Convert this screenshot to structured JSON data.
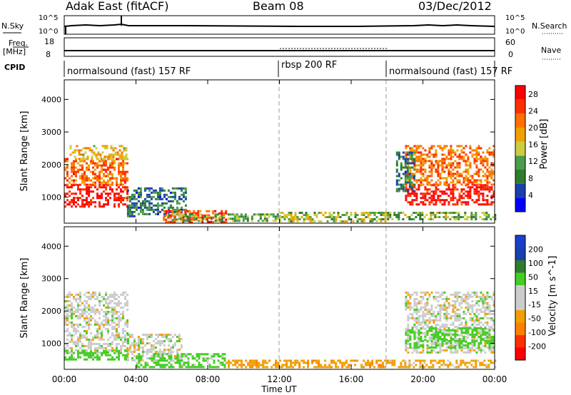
{
  "header": {
    "station": "Adak East (fitACF)",
    "beam": "Beam 08",
    "date": "03/Dec/2012"
  },
  "strips": {
    "nsky_label": "N.Sky",
    "nsky_ticks": [
      "10^5",
      "10^0"
    ],
    "nsearch_label": "N.Search",
    "freq_label_top": "Freq.",
    "freq_label_unit": "[MHz]",
    "freq_ticks": [
      "18",
      "8"
    ],
    "nave_label": "Nave",
    "nave_ticks": [
      "60",
      "0"
    ],
    "cpid_label": "CPID",
    "cpid_segments": [
      {
        "label": "normalsound (fast) 157 RF",
        "start_hour": 0,
        "end_hour": 12
      },
      {
        "label": "rbsp 200 RF",
        "start_hour": 12,
        "end_hour": 18
      },
      {
        "label": "normalsound (fast) 157 RF",
        "start_hour": 18,
        "end_hour": 24
      }
    ]
  },
  "colors": {
    "power": [
      "#0000ff",
      "#1a3fae",
      "#2e7c2e",
      "#4a9e4a",
      "#cccc44",
      "#f0a000",
      "#ff7000",
      "#ff3000",
      "#ff0000"
    ],
    "velocity": [
      "#ff0000",
      "#ff3000",
      "#ff8000",
      "#f0a000",
      "#cccccc",
      "#cccccc",
      "#44cc22",
      "#2e7c2e",
      "#1a3fae",
      "#1a3fcc"
    ]
  },
  "chart_data": [
    {
      "type": "heatmap",
      "title": "",
      "xlabel": "Time UT",
      "ylabel": "Slant Range [km]",
      "x_ticks": [
        "00:00",
        "04:00",
        "08:00",
        "12:00",
        "16:00",
        "20:00",
        "00:00"
      ],
      "xlim_hours": [
        0,
        24
      ],
      "y_ticks": [
        1000,
        2000,
        3000,
        4000
      ],
      "ylim": [
        200,
        4600
      ],
      "colorbar_label": "Power [dB]",
      "colorbar_ticks": [
        4,
        8,
        12,
        16,
        20,
        24,
        28
      ],
      "colorbar_range": [
        0,
        30
      ],
      "regions": [
        {
          "t0": 0.0,
          "t1": 3.5,
          "r0": 700,
          "r1": 1400,
          "value": 28
        },
        {
          "t0": 0.0,
          "t1": 3.5,
          "r0": 1400,
          "r1": 2200,
          "value": 22
        },
        {
          "t0": 0.3,
          "t1": 3.5,
          "r0": 2200,
          "r1": 2600,
          "value": 18
        },
        {
          "t0": 3.5,
          "t1": 6.8,
          "r0": 400,
          "r1": 1300,
          "value": 8
        },
        {
          "t0": 5.5,
          "t1": 9.0,
          "r0": 250,
          "r1": 600,
          "value": 24
        },
        {
          "t0": 6.0,
          "t1": 12.0,
          "r0": 300,
          "r1": 500,
          "value": 12
        },
        {
          "t0": 12.0,
          "t1": 18.0,
          "r0": 250,
          "r1": 550,
          "value": 14
        },
        {
          "t0": 18.0,
          "t1": 24.0,
          "r0": 300,
          "r1": 550,
          "value": 12
        },
        {
          "t0": 19.0,
          "t1": 24.0,
          "r0": 800,
          "r1": 1400,
          "value": 28
        },
        {
          "t0": 19.0,
          "t1": 24.0,
          "r0": 1400,
          "r1": 2600,
          "value": 22
        },
        {
          "t0": 18.5,
          "t1": 19.5,
          "r0": 1200,
          "r1": 2400,
          "value": 8
        }
      ]
    },
    {
      "type": "heatmap",
      "title": "",
      "xlabel": "Time UT",
      "ylabel": "Slant Range [km]",
      "x_ticks": [
        "00:00",
        "04:00",
        "08:00",
        "12:00",
        "16:00",
        "20:00",
        "00:00"
      ],
      "xlim_hours": [
        0,
        24
      ],
      "y_ticks": [
        1000,
        2000,
        3000,
        4000
      ],
      "ylim": [
        200,
        4600
      ],
      "colorbar_label": "Velocity [m s^-1]",
      "colorbar_ticks": [
        200,
        100,
        50,
        15,
        -15,
        -50,
        -100,
        -200
      ],
      "regions": [
        {
          "t0": 0.0,
          "t1": 3.5,
          "r0": 700,
          "r1": 2600,
          "value": 0
        },
        {
          "t0": 0.0,
          "t1": 3.5,
          "r0": 500,
          "r1": 800,
          "value": 30
        },
        {
          "t0": 3.5,
          "t1": 6.5,
          "r0": 500,
          "r1": 1300,
          "value": 0
        },
        {
          "t0": 4.0,
          "t1": 9.0,
          "r0": 250,
          "r1": 700,
          "value": 30
        },
        {
          "t0": 9.0,
          "t1": 18.0,
          "r0": 250,
          "r1": 500,
          "value": -40
        },
        {
          "t0": 18.0,
          "t1": 24.0,
          "r0": 250,
          "r1": 500,
          "value": -30
        },
        {
          "t0": 19.0,
          "t1": 24.0,
          "r0": 700,
          "r1": 2600,
          "value": 0
        },
        {
          "t0": 19.0,
          "t1": 24.0,
          "r0": 900,
          "r1": 1500,
          "value": 30
        }
      ]
    }
  ]
}
